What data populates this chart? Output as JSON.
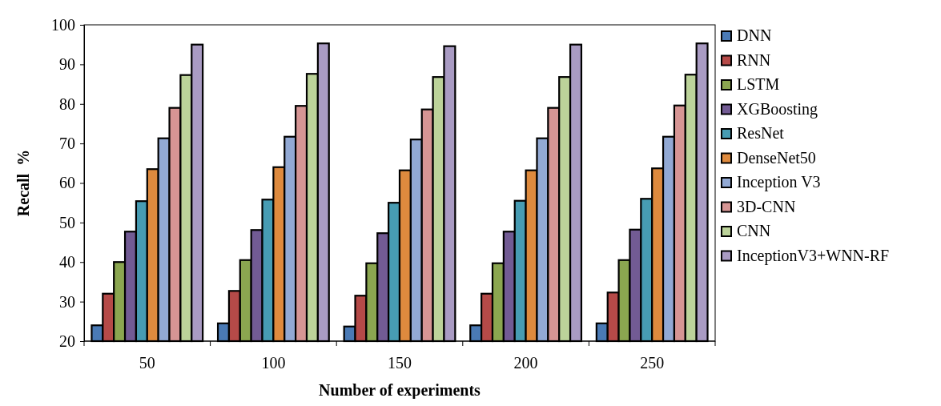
{
  "chart_data": {
    "type": "bar",
    "xlabel": "Number of experiments",
    "ylabel": "Recall  %",
    "categories": [
      "50",
      "100",
      "150",
      "200",
      "250"
    ],
    "ylim": [
      20,
      100
    ],
    "yticks": [
      20,
      30,
      40,
      50,
      60,
      70,
      80,
      90,
      100
    ],
    "grid": false,
    "legend": "right",
    "series": [
      {
        "name": "DNN",
        "color": "#4a7ab5",
        "values": [
          24,
          24.5,
          23.7,
          24,
          24.5
        ]
      },
      {
        "name": "RNN",
        "color": "#b54a48",
        "values": [
          32,
          32.7,
          31.5,
          32,
          32.3
        ]
      },
      {
        "name": "LSTM",
        "color": "#8ba650",
        "values": [
          40,
          40.5,
          39.7,
          39.7,
          40.5
        ]
      },
      {
        "name": "XGBoosting",
        "color": "#725b94",
        "values": [
          47.7,
          48.1,
          47.3,
          47.7,
          48.2
        ]
      },
      {
        "name": "ResNet",
        "color": "#479cb3",
        "values": [
          55.4,
          55.8,
          55,
          55.5,
          56
        ]
      },
      {
        "name": "DenseNet50",
        "color": "#de8a3e",
        "values": [
          63.5,
          64,
          63.2,
          63.2,
          63.7
        ]
      },
      {
        "name": "Inception V3",
        "color": "#92a9d4",
        "values": [
          71.3,
          71.7,
          71,
          71.3,
          71.7
        ]
      },
      {
        "name": "3D-CNN",
        "color": "#d69594",
        "values": [
          79,
          79.5,
          78.6,
          79,
          79.6
        ]
      },
      {
        "name": "CNN",
        "color": "#bcd39a",
        "values": [
          87.3,
          87.6,
          86.8,
          86.8,
          87.4
        ]
      },
      {
        "name": "InceptionV3+WNN-RF",
        "color": "#a99bc3",
        "values": [
          95,
          95.3,
          94.6,
          95,
          95.3
        ]
      }
    ]
  }
}
